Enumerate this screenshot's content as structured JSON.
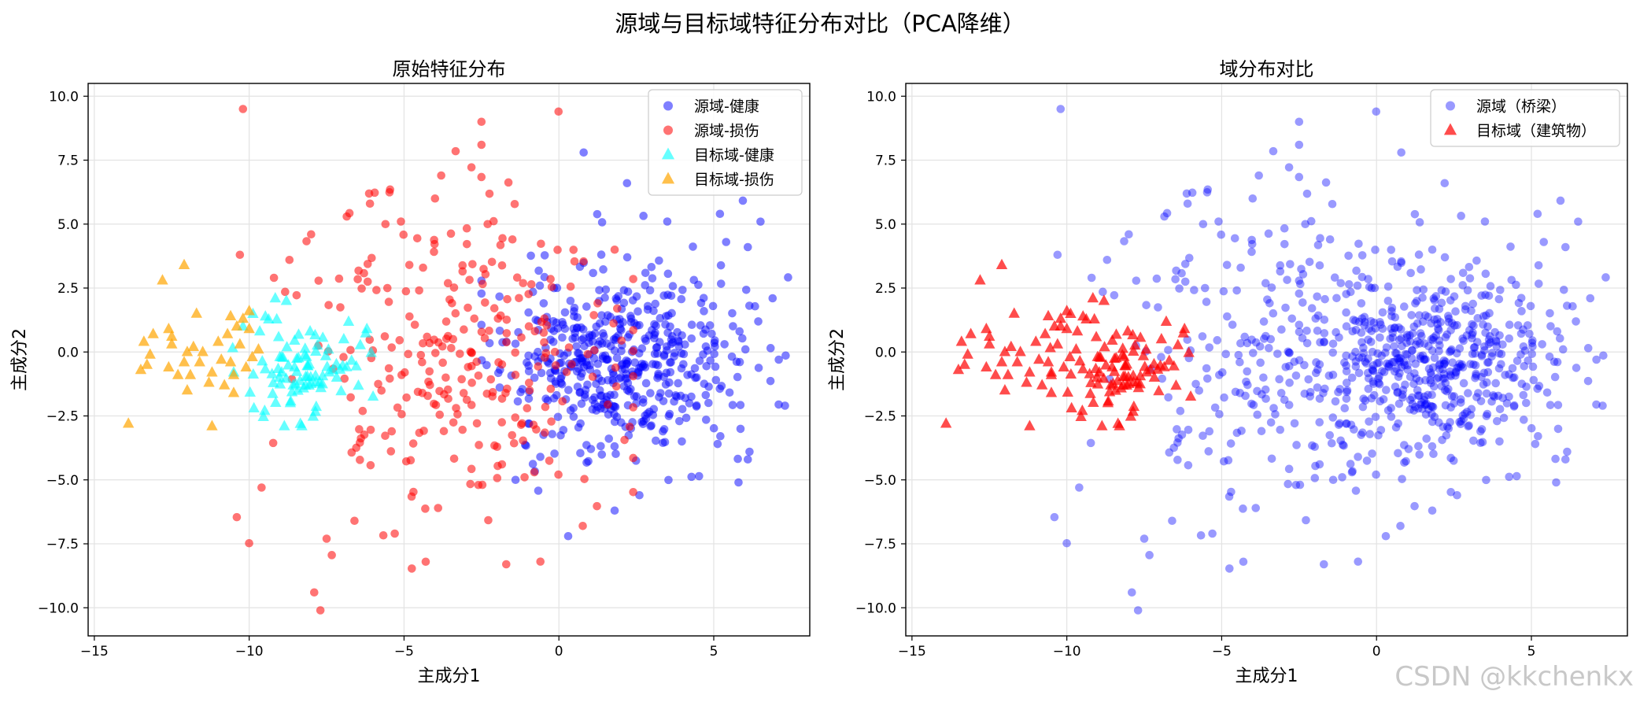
{
  "figure": {
    "suptitle": "源域与目标域特征分布对比（PCA降维）",
    "watermark": "CSDN @kkchenkx"
  },
  "chart_data": [
    {
      "type": "scatter",
      "title": "原始特征分布",
      "xlabel": "主成分1",
      "ylabel": "主成分2",
      "xlim": [
        -15.2,
        8.1
      ],
      "ylim": [
        -11.1,
        10.5
      ],
      "xticks": [
        -15,
        -10,
        -5,
        0,
        5
      ],
      "xtick_labels": [
        "−15",
        "−10",
        "−5",
        "0",
        "5"
      ],
      "yticks": [
        10,
        7.5,
        5,
        2.5,
        0,
        -2.5,
        -5,
        -7.5,
        -10
      ],
      "ytick_labels": [
        "10.0",
        "7.5",
        "5.0",
        "2.5",
        "0.0",
        "−2.5",
        "−5.0",
        "−7.5",
        "−10.0"
      ],
      "grid": true,
      "legend_position": "top-right",
      "series": [
        {
          "name": "源域-健康",
          "color": "#0000ff",
          "marker": "circle",
          "alpha": 0.5,
          "count": 500,
          "center": [
            2.0,
            -0.3
          ],
          "spread": [
            1.9,
            1.8
          ],
          "points": [
            [
              0.8,
              7.8
            ],
            [
              2.2,
              6.6
            ],
            [
              5.2,
              5.4
            ],
            [
              3.5,
              5.1
            ],
            [
              5.4,
              4.3
            ],
            [
              6.1,
              4.1
            ],
            [
              6.9,
              2.1
            ],
            [
              7.1,
              -0.3
            ],
            [
              7.3,
              -2.1
            ],
            [
              6.1,
              -4.2
            ],
            [
              5.8,
              -5.1
            ],
            [
              2.6,
              -5.6
            ],
            [
              1.8,
              -6.2
            ],
            [
              0.3,
              -7.2
            ],
            [
              -0.6,
              -4.1
            ],
            [
              -1.4,
              -5.0
            ]
          ]
        },
        {
          "name": "源域-损伤",
          "color": "#ff0000",
          "marker": "circle",
          "alpha": 0.55,
          "count": 270,
          "center": [
            -3.3,
            -0.3
          ],
          "spread": [
            2.6,
            3.2
          ],
          "points": [
            [
              -10.2,
              9.5
            ],
            [
              -2.5,
              9.0
            ],
            [
              -2.5,
              8.1
            ],
            [
              -3.8,
              6.9
            ],
            [
              -6.1,
              5.8
            ],
            [
              -9.2,
              2.9
            ],
            [
              -10.3,
              3.8
            ],
            [
              -8.0,
              4.6
            ],
            [
              -5.6,
              5.0
            ],
            [
              -5.1,
              5.1
            ],
            [
              -2.3,
              5.0
            ],
            [
              -1.5,
              4.4
            ],
            [
              -9.6,
              -5.3
            ],
            [
              -6.6,
              -6.6
            ],
            [
              -4.3,
              -8.2
            ],
            [
              -3.9,
              -6.1
            ],
            [
              -2.6,
              -5.2
            ],
            [
              -7.5,
              -7.3
            ],
            [
              -7.9,
              -9.4
            ],
            [
              -7.7,
              -10.1
            ],
            [
              -1.7,
              -8.3
            ],
            [
              -5.3,
              -7.1
            ],
            [
              1.8,
              4.0
            ],
            [
              -8.7,
              3.6
            ],
            [
              -4.0,
              6.0
            ]
          ]
        },
        {
          "name": "目标域-健康",
          "color": "#00ffff",
          "marker": "triangle",
          "alpha": 0.6,
          "count": 90,
          "center": [
            -8.1,
            -0.5
          ],
          "spread": [
            0.9,
            1.05
          ],
          "points": [
            [
              -8.8,
              2.0
            ],
            [
              -10.2,
              1.0
            ],
            [
              -9.5,
              -2.3
            ],
            [
              -8.3,
              -2.9
            ],
            [
              -6.2,
              0.9
            ],
            [
              -10.5,
              -0.8
            ]
          ]
        },
        {
          "name": "目标域-损伤",
          "color": "#ffa500",
          "marker": "triangle",
          "alpha": 0.7,
          "count": 0,
          "center": [
            -12.0,
            0.0
          ],
          "spread": [
            1.2,
            1.2
          ],
          "points": [
            [
              -12.1,
              3.4
            ],
            [
              -12.8,
              2.8
            ],
            [
              -13.9,
              -2.8
            ],
            [
              -11.2,
              -2.9
            ],
            [
              -13.4,
              0.4
            ],
            [
              -13.5,
              -0.7
            ],
            [
              -13.1,
              0.7
            ],
            [
              -13.3,
              -0.5
            ],
            [
              -13.2,
              -0.1
            ],
            [
              -12.5,
              0.6
            ],
            [
              -12.6,
              0.9
            ],
            [
              -12.0,
              0.0
            ],
            [
              -11.8,
              0.2
            ],
            [
              -11.5,
              0.0
            ],
            [
              -12.1,
              -0.4
            ],
            [
              -11.9,
              -0.9
            ],
            [
              -12.3,
              -0.9
            ],
            [
              -11.6,
              -0.4
            ],
            [
              -11.2,
              -0.8
            ],
            [
              -10.9,
              -0.3
            ],
            [
              -11.0,
              0.4
            ],
            [
              -10.7,
              0.7
            ],
            [
              -10.6,
              1.4
            ],
            [
              -10.4,
              1.0
            ],
            [
              -10.0,
              1.6
            ],
            [
              -10.2,
              1.3
            ],
            [
              -10.0,
              0.9
            ],
            [
              -10.3,
              0.3
            ],
            [
              -10.6,
              -0.4
            ],
            [
              -10.5,
              -0.9
            ],
            [
              -10.8,
              -1.3
            ],
            [
              -10.5,
              -1.6
            ],
            [
              -11.7,
              1.5
            ],
            [
              -12.5,
              0.3
            ],
            [
              -12.0,
              -1.5
            ],
            [
              -12.6,
              -0.6
            ],
            [
              -11.3,
              -1.2
            ],
            [
              -9.9,
              -0.2
            ],
            [
              -10.1,
              -0.6
            ],
            [
              -9.7,
              0.1
            ]
          ]
        }
      ]
    },
    {
      "type": "scatter",
      "title": "域分布对比",
      "xlabel": "主成分1",
      "ylabel": "主成分2",
      "xlim": [
        -15.2,
        8.1
      ],
      "ylim": [
        -11.1,
        10.5
      ],
      "xticks": [
        -15,
        -10,
        -5,
        0,
        5
      ],
      "xtick_labels": [
        "−15",
        "−10",
        "−5",
        "0",
        "5"
      ],
      "yticks": [
        10,
        7.5,
        5,
        2.5,
        0,
        -2.5,
        -5,
        -7.5,
        -10
      ],
      "ytick_labels": [
        "10.0",
        "7.5",
        "5.0",
        "2.5",
        "0.0",
        "−2.5",
        "−5.0",
        "−7.5",
        "−10.0"
      ],
      "grid": true,
      "legend_position": "top-right",
      "series": [
        {
          "name": "源域（桥梁）",
          "color": "#0000ff",
          "marker": "circle",
          "alpha": 0.4,
          "same_as": [
            0,
            1
          ]
        },
        {
          "name": "目标域（建筑物）",
          "color": "#ff0000",
          "marker": "triangle",
          "alpha": 0.7,
          "same_as": [
            2,
            3
          ]
        }
      ]
    }
  ]
}
